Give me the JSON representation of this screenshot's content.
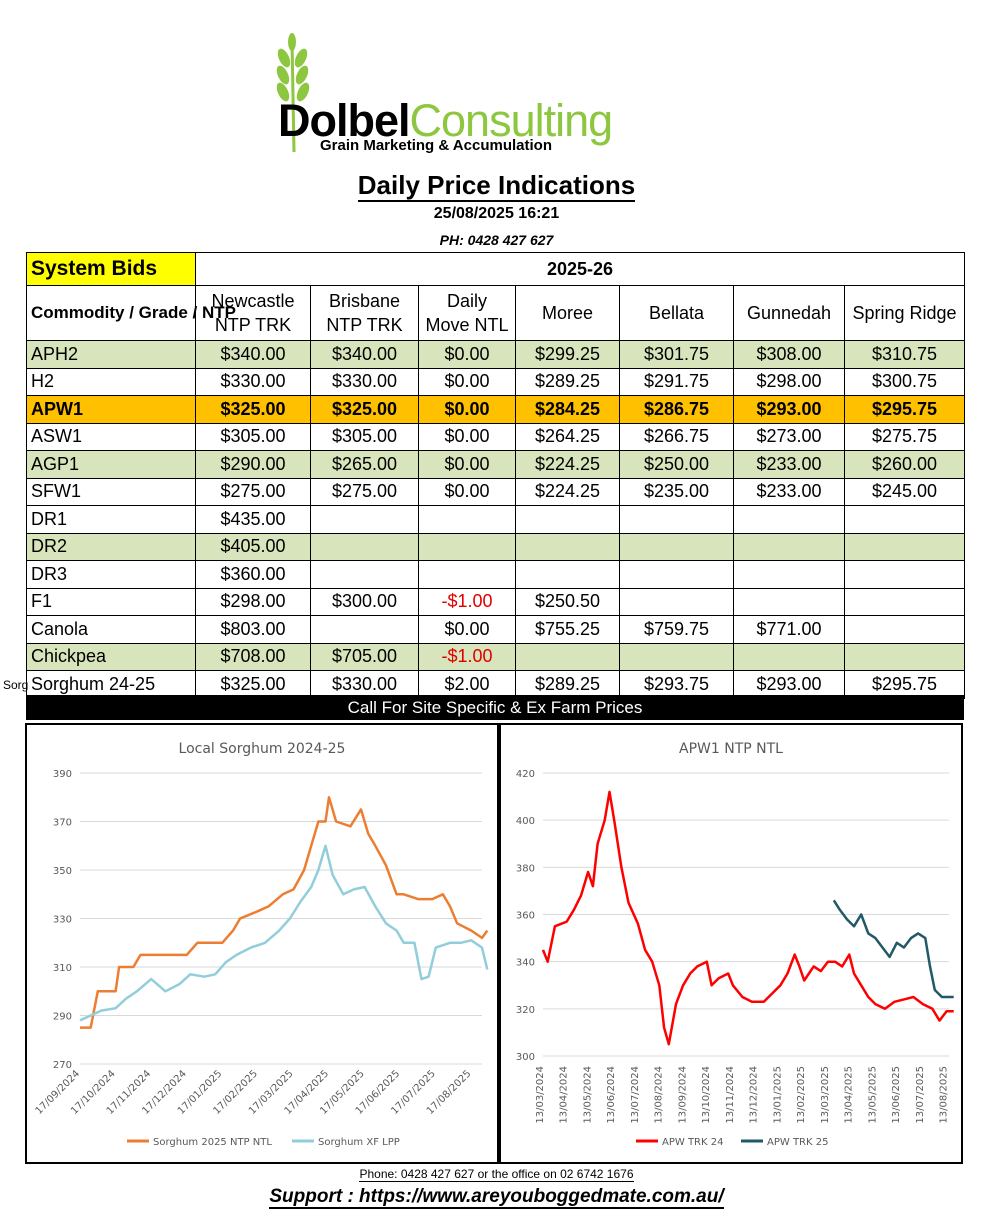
{
  "header": {
    "brand_part1": "Dolbel",
    "brand_part2": "Consulting",
    "tagline": "Grain Marketing & Accumulation",
    "title": "Daily Price Indications",
    "datetime": "25/08/2025 16:21",
    "phone": "PH: 0428 427 627"
  },
  "table": {
    "system_bids": "System Bids",
    "season": "2025-26",
    "col_commodity": "Commodity / Grade / NTP",
    "columns": [
      {
        "line1": "Newcastle",
        "line2": "NTP TRK"
      },
      {
        "line1": "Brisbane",
        "line2": "NTP TRK"
      },
      {
        "line1": "Daily",
        "line2": "Move NTL"
      },
      {
        "line1": "Moree",
        "line2": ""
      },
      {
        "line1": "Bellata",
        "line2": ""
      },
      {
        "line1": "Gunnedah",
        "line2": ""
      },
      {
        "line1": "Spring Ridge",
        "line2": ""
      }
    ],
    "rows": [
      {
        "grade": "APH2",
        "style": "green",
        "cells": [
          "$340.00",
          "$340.00",
          "$0.00",
          "$299.25",
          "$301.75",
          "$308.00",
          "$310.75"
        ]
      },
      {
        "grade": "H2",
        "style": "white",
        "cells": [
          "$330.00",
          "$330.00",
          "$0.00",
          "$289.25",
          "$291.75",
          "$298.00",
          "$300.75"
        ]
      },
      {
        "grade": "APW1",
        "style": "apw",
        "cells": [
          "$325.00",
          "$325.00",
          "$0.00",
          "$284.25",
          "$286.75",
          "$293.00",
          "$295.75"
        ]
      },
      {
        "grade": "ASW1",
        "style": "white",
        "cells": [
          "$305.00",
          "$305.00",
          "$0.00",
          "$264.25",
          "$266.75",
          "$273.00",
          "$275.75"
        ]
      },
      {
        "grade": "AGP1",
        "style": "green",
        "cells": [
          "$290.00",
          "$265.00",
          "$0.00",
          "$224.25",
          "$250.00",
          "$233.00",
          "$260.00"
        ]
      },
      {
        "grade": "SFW1",
        "style": "white",
        "cells": [
          "$275.00",
          "$275.00",
          "$0.00",
          "$224.25",
          "$235.00",
          "$233.00",
          "$245.00"
        ]
      },
      {
        "grade": "DR1",
        "style": "white",
        "cells": [
          "$435.00",
          "",
          "",
          "",
          "",
          "",
          ""
        ]
      },
      {
        "grade": "DR2",
        "style": "green",
        "cells": [
          "$405.00",
          "",
          "",
          "",
          "",
          "",
          ""
        ]
      },
      {
        "grade": "DR3",
        "style": "white",
        "cells": [
          "$360.00",
          "",
          "",
          "",
          "",
          "",
          ""
        ]
      },
      {
        "grade": "F1",
        "style": "white",
        "cells": [
          "$298.00",
          "$300.00",
          "-$1.00",
          "$250.50",
          "",
          "",
          ""
        ]
      },
      {
        "grade": "Canola",
        "style": "white",
        "cells": [
          "$803.00",
          "",
          "$0.00",
          "$755.25",
          "$759.75",
          "$771.00",
          ""
        ]
      },
      {
        "grade": "Chickpea",
        "style": "green",
        "cells": [
          "$708.00",
          "$705.00",
          "-$1.00",
          "",
          "",
          "",
          ""
        ]
      },
      {
        "grade": "Sorghum 24-25",
        "style": "white",
        "cells": [
          "$325.00",
          "$330.00",
          "$2.00",
          "$289.25",
          "$293.75",
          "$293.00",
          "$295.75"
        ]
      }
    ],
    "cutoff_text": "Sorg",
    "call_bar": "Call For Site Specific & Ex Farm Prices"
  },
  "colors": {
    "green_row": "#d8e4bc",
    "apw_row": "#ffc000",
    "system_bids": "#ffff00",
    "negative": "#e00000"
  },
  "chart_data": [
    {
      "type": "line",
      "title": "Local Sorghum 2024-25",
      "xlabel": "",
      "ylabel": "",
      "ylim": [
        270,
        390
      ],
      "yticks": [
        270,
        290,
        310,
        330,
        350,
        370,
        390
      ],
      "x_ticks": [
        "17/09/2024",
        "17/10/2024",
        "17/11/2024",
        "17/12/2024",
        "17/01/2025",
        "17/02/2025",
        "17/03/2025",
        "17/04/2025",
        "17/05/2025",
        "17/06/2025",
        "17/07/2025",
        "17/08/2025"
      ],
      "grid": true,
      "legend": "bottom",
      "series": [
        {
          "name": "Sorghum  2025 NTP NTL",
          "color": "#ed7d31",
          "points": [
            [
              0,
              285
            ],
            [
              0.3,
              285
            ],
            [
              0.5,
              300
            ],
            [
              1.0,
              300
            ],
            [
              1.1,
              310
            ],
            [
              1.5,
              310
            ],
            [
              1.7,
              315
            ],
            [
              2.5,
              315
            ],
            [
              3.0,
              315
            ],
            [
              3.3,
              320
            ],
            [
              4.0,
              320
            ],
            [
              4.3,
              325
            ],
            [
              4.5,
              330
            ],
            [
              5.0,
              333
            ],
            [
              5.3,
              335
            ],
            [
              5.7,
              340
            ],
            [
              6.0,
              342
            ],
            [
              6.3,
              350
            ],
            [
              6.5,
              360
            ],
            [
              6.7,
              370
            ],
            [
              6.9,
              370
            ],
            [
              7.0,
              380
            ],
            [
              7.2,
              370
            ],
            [
              7.6,
              368
            ],
            [
              7.9,
              375
            ],
            [
              8.1,
              365
            ],
            [
              8.3,
              360
            ],
            [
              8.6,
              352
            ],
            [
              8.9,
              340
            ],
            [
              9.1,
              340
            ],
            [
              9.5,
              338
            ],
            [
              9.9,
              338
            ],
            [
              10.2,
              340
            ],
            [
              10.4,
              335
            ],
            [
              10.6,
              328
            ],
            [
              11.0,
              325
            ],
            [
              11.3,
              322
            ],
            [
              11.45,
              325
            ]
          ]
        },
        {
          "name": "Sorghum XF LPP",
          "color": "#92cddc",
          "points": [
            [
              0,
              288
            ],
            [
              0.3,
              290
            ],
            [
              0.6,
              292
            ],
            [
              1.0,
              293
            ],
            [
              1.3,
              297
            ],
            [
              1.6,
              300
            ],
            [
              2.0,
              305
            ],
            [
              2.4,
              300
            ],
            [
              2.8,
              303
            ],
            [
              3.1,
              307
            ],
            [
              3.5,
              306
            ],
            [
              3.8,
              307
            ],
            [
              4.1,
              312
            ],
            [
              4.4,
              315
            ],
            [
              4.8,
              318
            ],
            [
              5.2,
              320
            ],
            [
              5.6,
              325
            ],
            [
              5.9,
              330
            ],
            [
              6.2,
              337
            ],
            [
              6.5,
              343
            ],
            [
              6.7,
              350
            ],
            [
              6.9,
              360
            ],
            [
              7.1,
              348
            ],
            [
              7.4,
              340
            ],
            [
              7.7,
              342
            ],
            [
              8.0,
              343
            ],
            [
              8.3,
              335
            ],
            [
              8.6,
              328
            ],
            [
              8.9,
              325
            ],
            [
              9.1,
              320
            ],
            [
              9.4,
              320
            ],
            [
              9.6,
              305
            ],
            [
              9.8,
              306
            ],
            [
              10.0,
              318
            ],
            [
              10.4,
              320
            ],
            [
              10.7,
              320
            ],
            [
              11.0,
              321
            ],
            [
              11.3,
              318
            ],
            [
              11.45,
              309
            ]
          ]
        }
      ]
    },
    {
      "type": "line",
      "title": "APW1 NTP NTL",
      "xlabel": "",
      "ylabel": "",
      "ylim": [
        300,
        420
      ],
      "yticks": [
        300,
        320,
        340,
        360,
        380,
        400,
        420
      ],
      "x_ticks": [
        "13/03/2024",
        "13/04/2024",
        "13/05/2024",
        "13/06/2024",
        "13/07/2024",
        "13/08/2024",
        "13/09/2024",
        "13/10/2024",
        "13/11/2024",
        "13/12/2024",
        "13/01/2025",
        "13/02/2025",
        "13/03/2025",
        "13/04/2025",
        "13/05/2025",
        "13/06/2025",
        "13/07/2025",
        "13/08/2025"
      ],
      "grid": true,
      "legend": "bottom",
      "series": [
        {
          "name": "APW TRK 24",
          "color": "#ff0000",
          "points": [
            [
              0,
              345
            ],
            [
              0.2,
              340
            ],
            [
              0.5,
              355
            ],
            [
              1.0,
              357
            ],
            [
              1.3,
              362
            ],
            [
              1.6,
              368
            ],
            [
              1.9,
              378
            ],
            [
              2.1,
              372
            ],
            [
              2.3,
              390
            ],
            [
              2.6,
              400
            ],
            [
              2.8,
              412
            ],
            [
              3.0,
              400
            ],
            [
              3.3,
              380
            ],
            [
              3.6,
              365
            ],
            [
              4.0,
              356
            ],
            [
              4.3,
              345
            ],
            [
              4.6,
              340
            ],
            [
              4.9,
              330
            ],
            [
              5.1,
              312
            ],
            [
              5.3,
              305
            ],
            [
              5.6,
              322
            ],
            [
              5.9,
              330
            ],
            [
              6.2,
              335
            ],
            [
              6.5,
              338
            ],
            [
              6.9,
              340
            ],
            [
              7.1,
              330
            ],
            [
              7.4,
              333
            ],
            [
              7.8,
              335
            ],
            [
              8.0,
              330
            ],
            [
              8.4,
              325
            ],
            [
              8.8,
              323
            ],
            [
              9.3,
              323
            ],
            [
              9.6,
              326
            ],
            [
              10.0,
              330
            ],
            [
              10.3,
              335
            ],
            [
              10.6,
              343
            ],
            [
              10.8,
              338
            ],
            [
              11.0,
              332
            ],
            [
              11.4,
              338
            ],
            [
              11.7,
              336
            ],
            [
              12.0,
              340
            ],
            [
              12.3,
              340
            ],
            [
              12.6,
              338
            ],
            [
              12.9,
              343
            ],
            [
              13.1,
              335
            ],
            [
              13.4,
              330
            ],
            [
              13.7,
              325
            ],
            [
              14.0,
              322
            ],
            [
              14.4,
              320
            ],
            [
              14.8,
              323
            ],
            [
              15.2,
              324
            ],
            [
              15.6,
              325
            ],
            [
              16.0,
              322
            ],
            [
              16.4,
              320
            ],
            [
              16.7,
              315
            ],
            [
              17.0,
              319
            ],
            [
              17.3,
              319
            ]
          ]
        },
        {
          "name": "APW TRK 25",
          "color": "#215967",
          "points": [
            [
              12.25,
              366
            ],
            [
              12.5,
              362
            ],
            [
              12.8,
              358
            ],
            [
              13.1,
              355
            ],
            [
              13.4,
              360
            ],
            [
              13.7,
              352
            ],
            [
              14.0,
              350
            ],
            [
              14.3,
              346
            ],
            [
              14.6,
              342
            ],
            [
              14.9,
              348
            ],
            [
              15.2,
              346
            ],
            [
              15.5,
              350
            ],
            [
              15.8,
              352
            ],
            [
              16.1,
              350
            ],
            [
              16.3,
              338
            ],
            [
              16.5,
              328
            ],
            [
              16.8,
              325
            ],
            [
              17.1,
              325
            ],
            [
              17.3,
              325
            ]
          ]
        }
      ]
    }
  ],
  "footer": {
    "contact": "Phone: 0428 427 627 or the office on 02 6742 1676",
    "support": "Support : https://www.areyouboggedmate.com.au/"
  }
}
